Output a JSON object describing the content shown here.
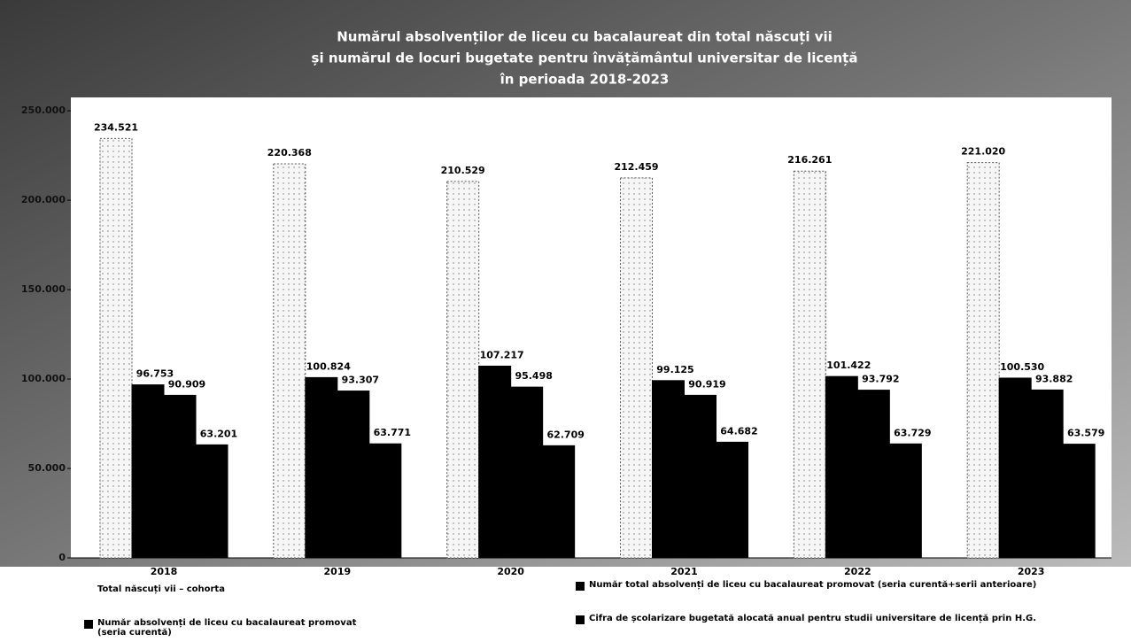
{
  "chart_data": {
    "type": "bar",
    "title": [
      "Numărul absolvenților de liceu cu bacalaureat din total născuți vii",
      "și numărul de locuri bugetate pentru învățământul universitar de licență",
      "în perioada 2018-2023"
    ],
    "categories": [
      "2018",
      "2019",
      "2020",
      "2021",
      "2022",
      "2023"
    ],
    "series": [
      {
        "name": "Total născuți vii – cohorta",
        "color": "#f4f4f4",
        "values": [
          234521,
          220368,
          210529,
          212459,
          216261,
          221020
        ],
        "value_labels": [
          "234.521",
          "220.368",
          "210.529",
          "212.459",
          "216.261",
          "221.020"
        ]
      },
      {
        "name": "Număr total absolvenți de liceu cu bacalaureat promovat (seria curentă+serii anterioare)",
        "color": "#000000",
        "values": [
          96753,
          100824,
          107217,
          99125,
          101422,
          100530
        ],
        "value_labels": [
          "96.753",
          "100.824",
          "107.217",
          "99.125",
          "101.422",
          "100.530"
        ]
      },
      {
        "name": "Număr absolvenți de liceu cu bacalaureat promovat (seria curentă)",
        "color": "#000000",
        "values": [
          90909,
          93307,
          95498,
          90919,
          93792,
          93882
        ],
        "value_labels": [
          "90.909",
          "93.307",
          "95.498",
          "90.919",
          "93.792",
          "93.882"
        ]
      },
      {
        "name": "Cifra de școlarizare bugetată alocată anual pentru studii universitare de licență prin H.G.",
        "color": "#000000",
        "values": [
          63201,
          63771,
          62709,
          64682,
          63729,
          63579
        ],
        "value_labels": [
          "63.201",
          "63.771",
          "62.709",
          "64.682",
          "63.729",
          "63.579"
        ]
      }
    ],
    "ylim": [
      0,
      255000
    ],
    "yticks": [
      0,
      {
        "value": 50000,
        "label": "50.000"
      },
      {
        "value": 100000,
        "label": "100.000"
      },
      {
        "value": 150000,
        "label": "150.000"
      },
      {
        "value": 200000,
        "label": "200.000"
      },
      {
        "value": 250000,
        "label": "250.000"
      }
    ],
    "grid": false,
    "legend": "bottom"
  }
}
